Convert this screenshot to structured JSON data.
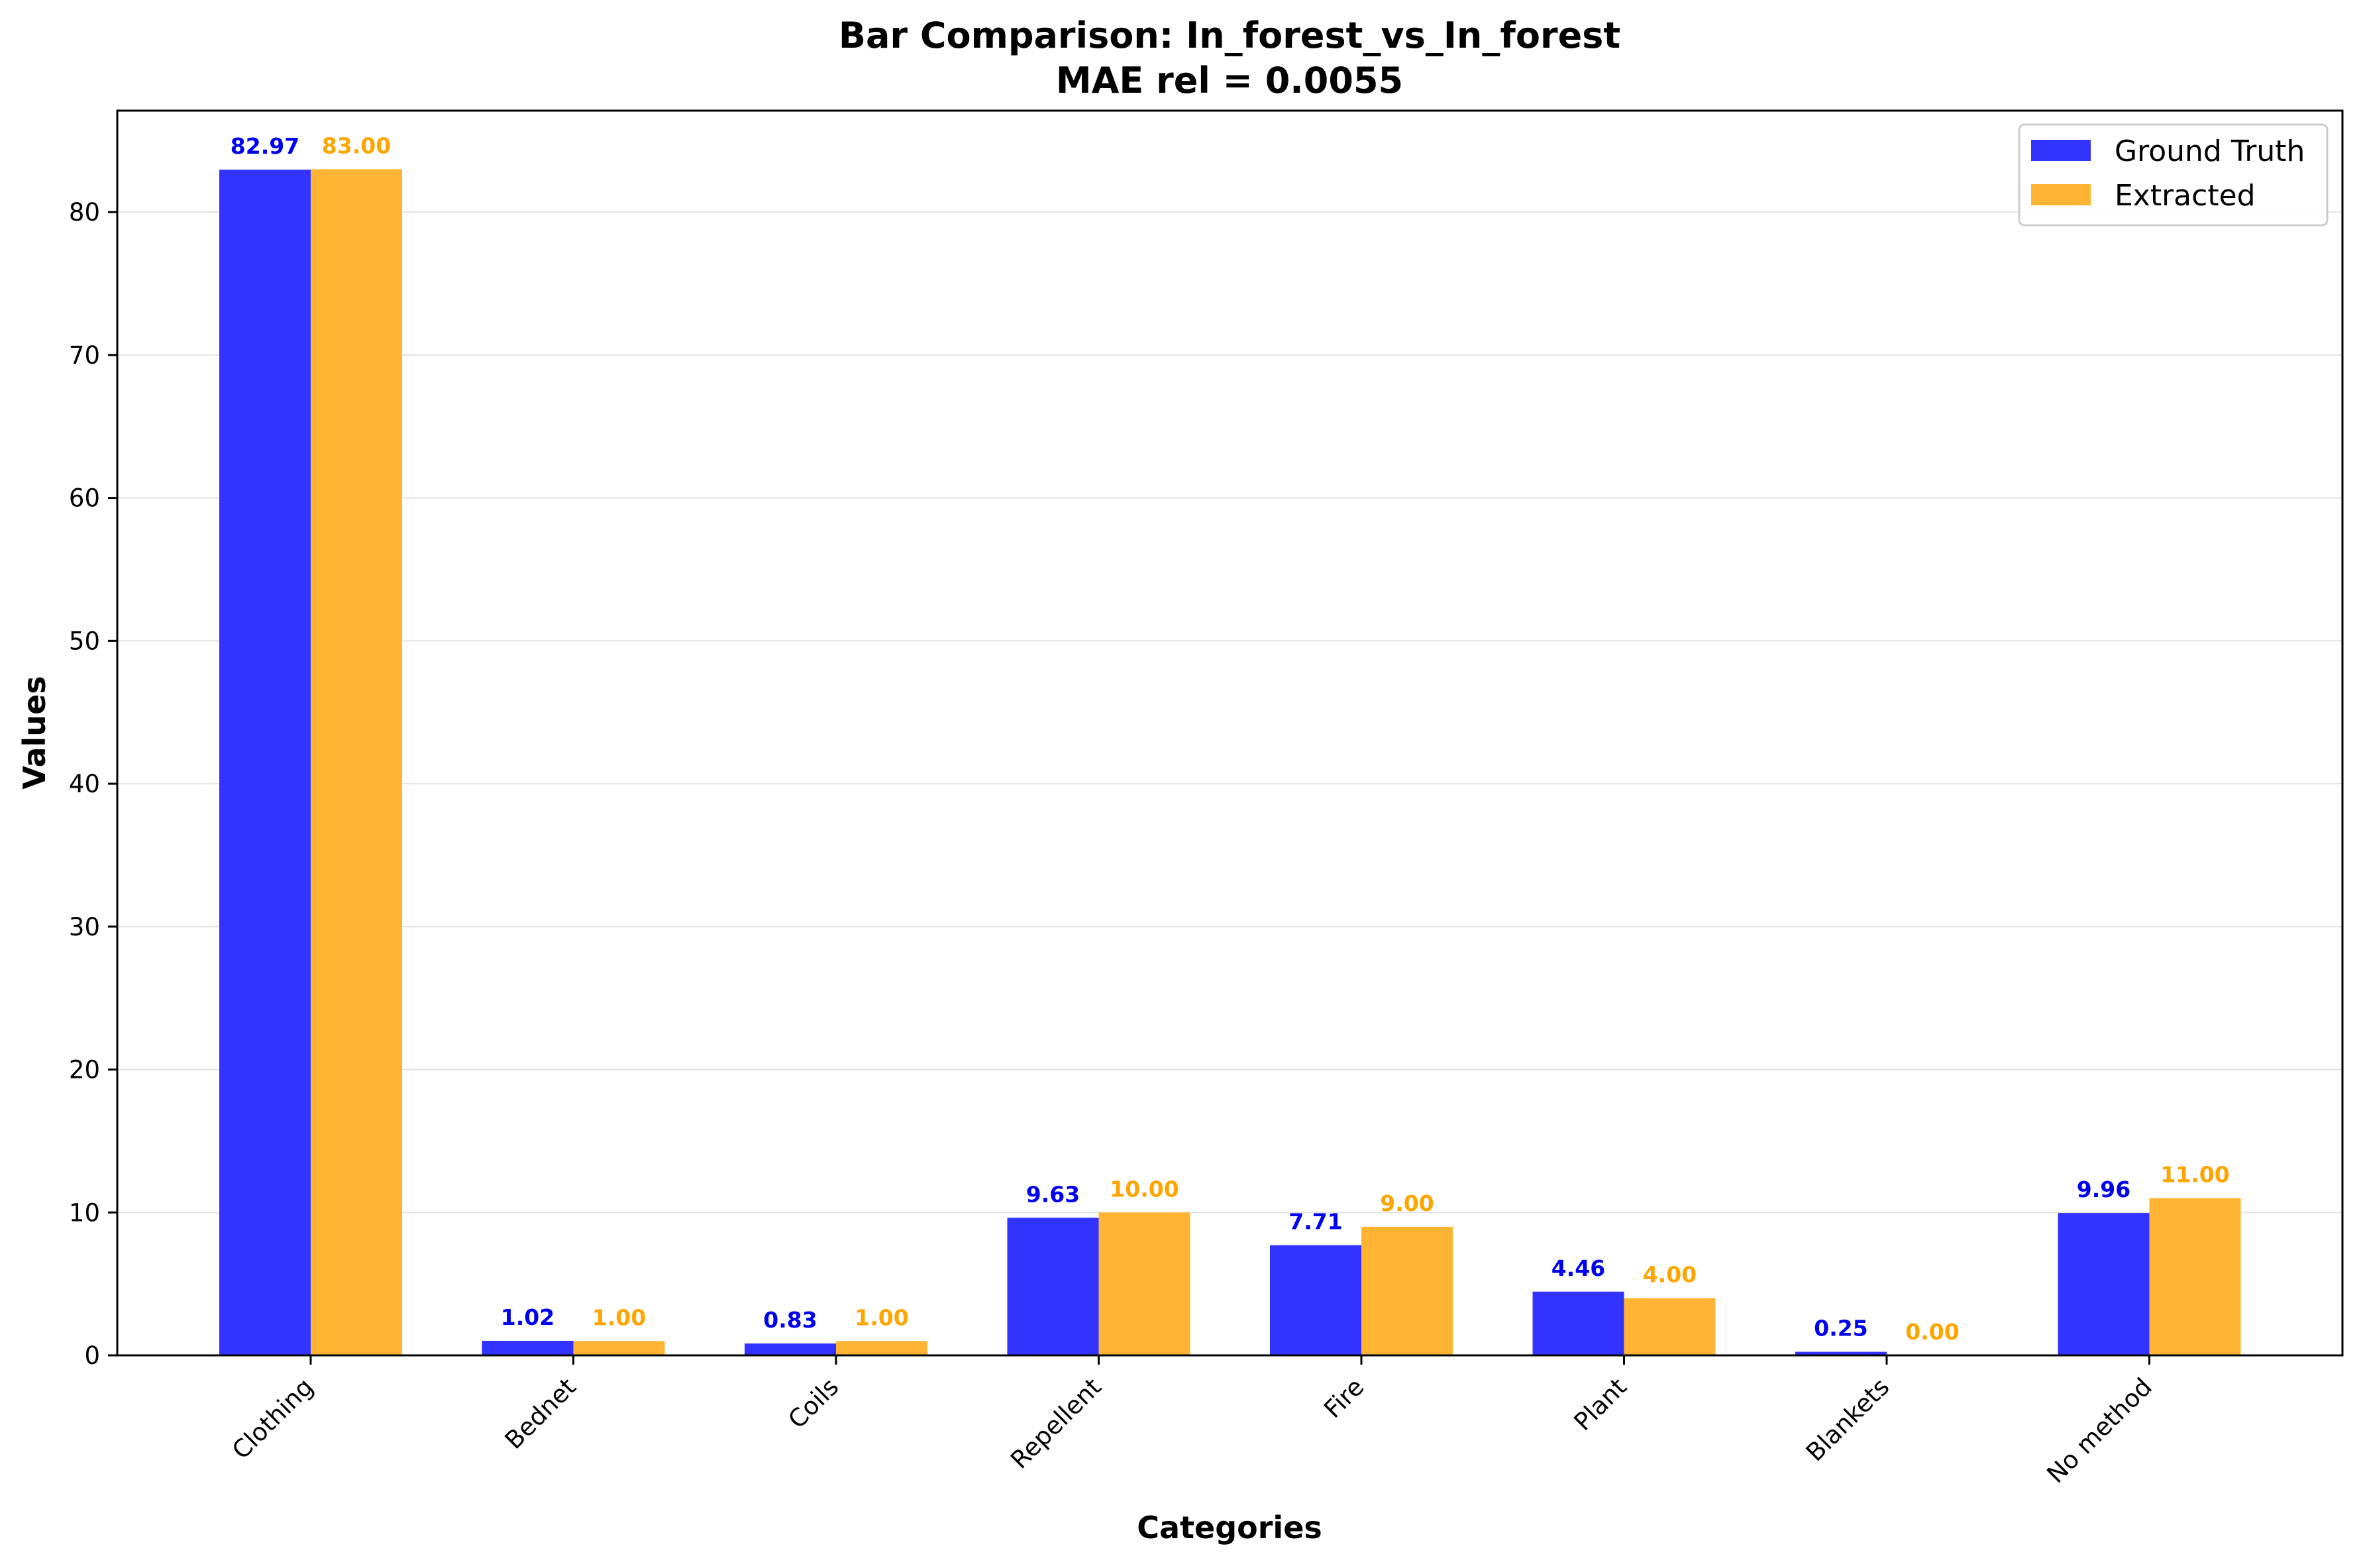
{
  "chart_data": {
    "type": "bar",
    "title": "Bar Comparison: In_forest_vs_In_forest",
    "subtitle": "MAE rel = 0.0055",
    "xlabel": "Categories",
    "ylabel": "Values",
    "ylim": [
      0,
      87.1
    ],
    "yticks": [
      0,
      10,
      20,
      30,
      40,
      50,
      60,
      70,
      80
    ],
    "grid": "horizontal",
    "legend_position": "top-right",
    "categories": [
      "Clothing",
      "Bednet",
      "Coils",
      "Repellent",
      "Fire",
      "Plant",
      "Blankets",
      "No method"
    ],
    "series": [
      {
        "name": "Ground Truth",
        "color": "#3333ff",
        "label_color": "#0000ee",
        "values": [
          82.97,
          1.02,
          0.83,
          9.63,
          7.71,
          4.46,
          0.25,
          9.96
        ],
        "labels": [
          "82.97",
          "1.02",
          "0.83",
          "9.63",
          "7.71",
          "4.46",
          "0.25",
          "9.96"
        ]
      },
      {
        "name": "Extracted",
        "color": "#ffb533",
        "label_color": "#ffa500",
        "values": [
          83.0,
          1.0,
          1.0,
          10.0,
          9.0,
          4.0,
          0.0,
          11.0
        ],
        "labels": [
          "83.00",
          "1.00",
          "1.00",
          "10.00",
          "9.00",
          "4.00",
          "0.00",
          "11.00"
        ]
      }
    ]
  }
}
